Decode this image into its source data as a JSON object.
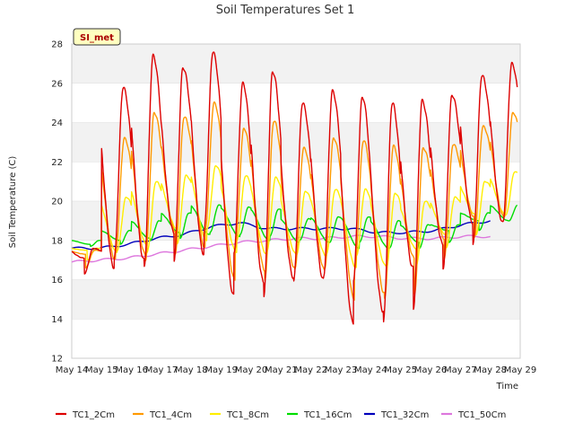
{
  "chart_data": {
    "type": "line",
    "title": "Soil Temperatures Set 1",
    "xlabel": "Time",
    "ylabel": "Soil Temperature (C)",
    "badge": "SI_met",
    "xlim": [
      "2016-05-14",
      "2016-05-29"
    ],
    "ylim": [
      12,
      28
    ],
    "x_ticks": [
      "May 14",
      "May 15",
      "May 16",
      "May 17",
      "May 18",
      "May 19",
      "May 20",
      "May 21",
      "May 22",
      "May 23",
      "May 24",
      "May 25",
      "May 26",
      "May 27",
      "May 28",
      "May 29"
    ],
    "y_ticks": [
      12,
      14,
      16,
      18,
      20,
      22,
      24,
      26,
      28
    ],
    "grid": "horizontal bands",
    "legend": "bottom",
    "daily_x": [
      "May 14",
      "May 15",
      "May 16",
      "May 17",
      "May 18",
      "May 19",
      "May 20",
      "May 21",
      "May 22",
      "May 23",
      "May 24",
      "May 25",
      "May 26",
      "May 27",
      "May 28"
    ],
    "series": [
      {
        "name": "TC1_2Cm",
        "color": "#dd0000",
        "daily_max": [
          17.6,
          25.8,
          27.4,
          26.8,
          27.6,
          26.0,
          26.6,
          25.0,
          25.6,
          25.3,
          25.0,
          25.1,
          25.4,
          26.4,
          27.0
        ],
        "daily_min": [
          16.3,
          17.1,
          16.6,
          17.0,
          18.4,
          17.3,
          15.2,
          15.9,
          16.1,
          16.0,
          13.8,
          14.4,
          16.6,
          17.8,
          18.9
        ]
      },
      {
        "name": "TC1_4Cm",
        "color": "#ff9900",
        "daily_max": [
          17.5,
          23.2,
          24.5,
          24.3,
          25.0,
          23.7,
          24.1,
          22.7,
          23.2,
          23.1,
          22.8,
          22.7,
          22.9,
          23.8,
          24.5
        ],
        "daily_min": [
          16.6,
          17.3,
          17.0,
          17.3,
          18.5,
          17.6,
          16.0,
          16.5,
          16.6,
          16.5,
          15.0,
          15.3,
          17.1,
          18.1,
          19.2
        ]
      },
      {
        "name": "TC1_8Cm",
        "color": "#ffee00",
        "daily_max": [
          17.6,
          20.2,
          21.0,
          21.3,
          21.8,
          21.3,
          21.2,
          20.5,
          20.6,
          20.6,
          20.4,
          20.0,
          20.2,
          21.0,
          21.5
        ],
        "daily_min": [
          17.0,
          17.5,
          17.4,
          17.8,
          18.6,
          18.0,
          17.4,
          17.3,
          17.3,
          17.2,
          16.6,
          16.7,
          17.6,
          18.3,
          19.3
        ]
      },
      {
        "name": "TC1_16Cm",
        "color": "#00dd00",
        "daily_max": [
          18.0,
          18.5,
          19.0,
          19.4,
          19.8,
          19.7,
          19.6,
          19.1,
          19.2,
          19.2,
          19.0,
          18.8,
          18.8,
          19.4,
          19.8
        ],
        "daily_min": [
          17.7,
          17.8,
          18.0,
          18.1,
          18.4,
          18.3,
          18.2,
          18.0,
          17.9,
          17.9,
          17.6,
          17.6,
          17.9,
          18.5,
          19.0
        ]
      },
      {
        "name": "TC1_32Cm",
        "color": "#0000bb",
        "daily": [
          17.6,
          17.6,
          17.8,
          18.1,
          18.3,
          18.7,
          18.9,
          18.6,
          18.6,
          18.6,
          18.6,
          18.4,
          18.4,
          18.5,
          18.8,
          19.0
        ]
      },
      {
        "name": "TC1_50Cm",
        "color": "#dd77dd",
        "daily": [
          16.9,
          17.0,
          17.1,
          17.3,
          17.5,
          17.7,
          17.9,
          18.0,
          18.1,
          18.1,
          18.2,
          18.2,
          18.1,
          18.1,
          18.2,
          18.2
        ]
      }
    ]
  }
}
